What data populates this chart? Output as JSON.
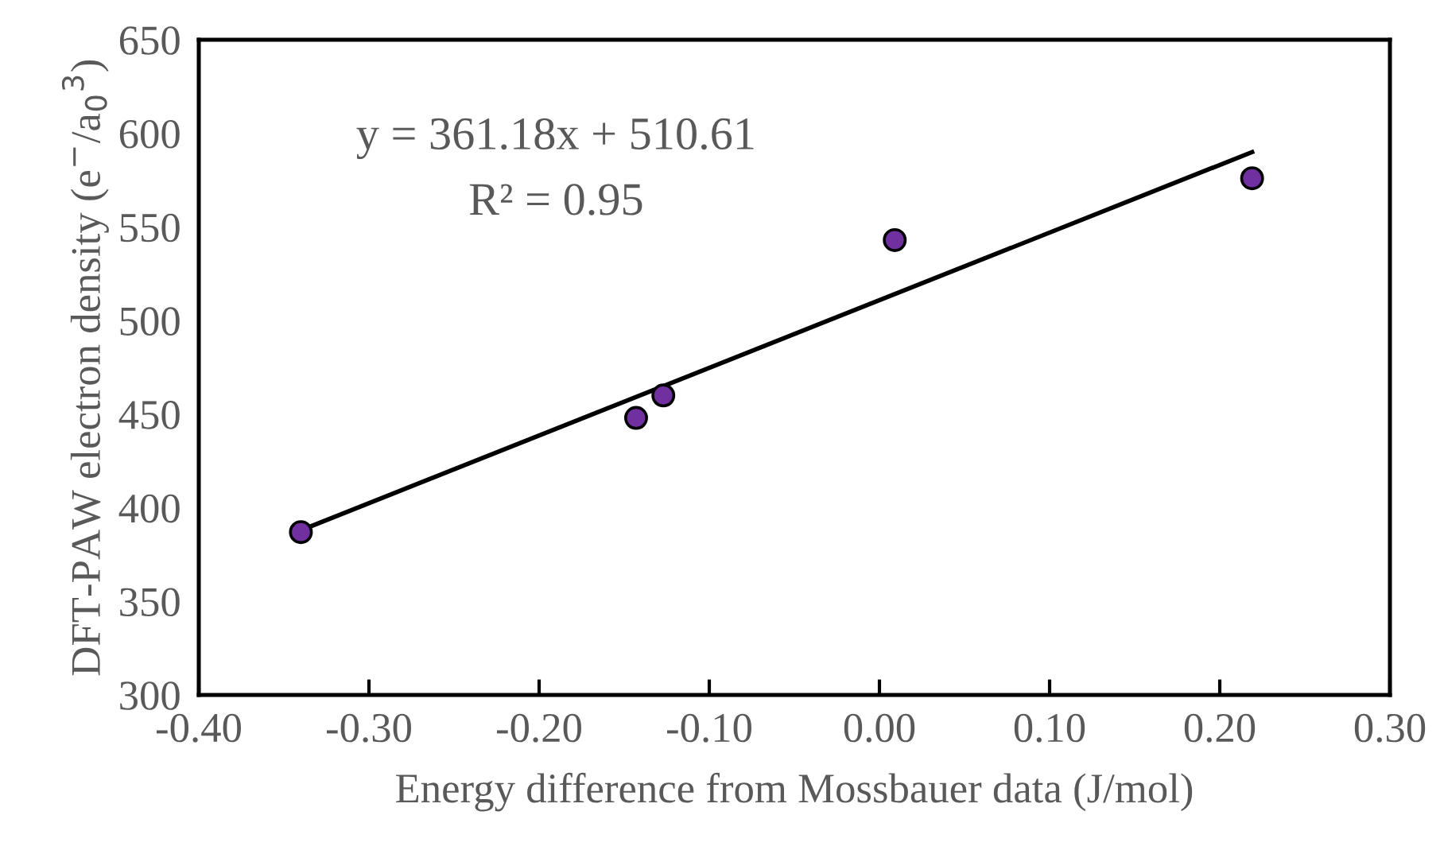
{
  "chart_data": {
    "type": "scatter",
    "xlabel": "Energy difference from Mossbauer data (J/mol)",
    "ylabel": "DFT-PAW electron density (e$^{−}$/a$_{0}$$^{3}$)",
    "x": [
      -0.34,
      -0.143,
      -0.127,
      0.009,
      0.219
    ],
    "series": [
      {
        "color": "#7030a0",
        "marker": "circle",
        "values": [
          387,
          448,
          460,
          543,
          576
        ]
      },
      {
        "type": "line",
        "color": "#000000",
        "line_style": "solid",
        "marker": "none",
        "x": [
          -0.34,
          0.219
        ],
        "values": [
          388,
          590
        ]
      }
    ],
    "annotations": [
      "y = 361.18x + 510.61",
      "R² = 0.95"
    ],
    "xlim": [
      -0.4,
      0.3
    ],
    "ylim": [
      300,
      650
    ],
    "xticks": [
      {
        "value": -0.4,
        "label": "-0.40"
      },
      {
        "value": -0.3,
        "label": "-0.30"
      },
      {
        "value": -0.2,
        "label": "-0.20"
      },
      {
        "value": -0.1,
        "label": "-0.10"
      },
      {
        "value": 0.0,
        "label": "0.00"
      },
      {
        "value": 0.1,
        "label": "0.10"
      },
      {
        "value": 0.2,
        "label": "0.20"
      },
      {
        "value": 0.3,
        "label": "0.30"
      }
    ],
    "yticks": [
      300,
      350,
      400,
      450,
      500,
      550,
      600,
      650
    ],
    "grid": false,
    "legend": false
  }
}
